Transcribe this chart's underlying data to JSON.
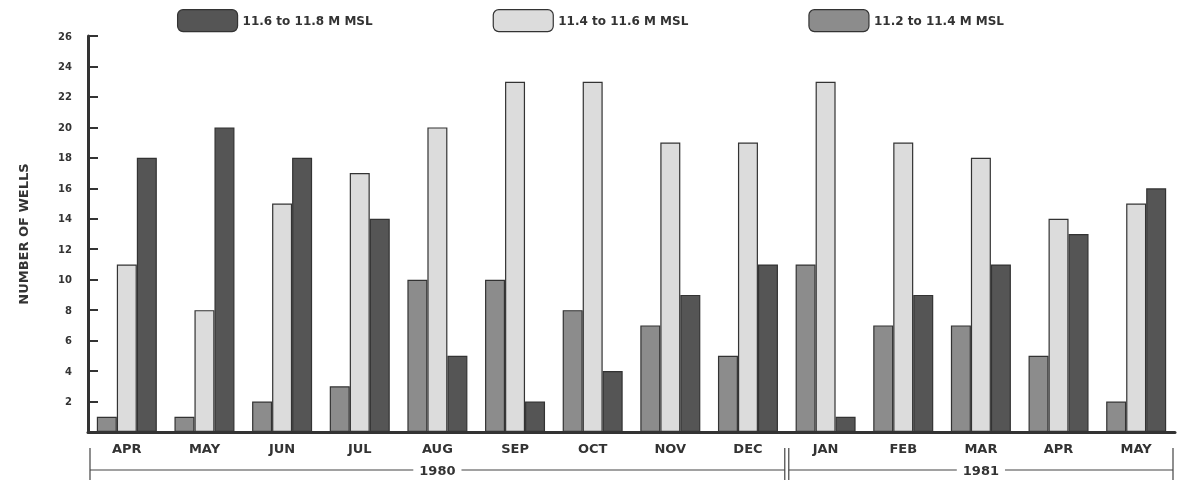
{
  "chart_data": {
    "type": "bar",
    "ylabel": "NUMBER OF WELLS",
    "categories": [
      "APR",
      "MAY",
      "JUN",
      "JUL",
      "AUG",
      "SEP",
      "OCT",
      "NOV",
      "DEC",
      "JAN",
      "FEB",
      "MAR",
      "APR",
      "MAY"
    ],
    "series": [
      {
        "name": "11.2 to 11.4 M MSL",
        "color": "#8c8c8c",
        "values": [
          1,
          1,
          2,
          3,
          10,
          10,
          8,
          7,
          5,
          11,
          7,
          7,
          5,
          2
        ]
      },
      {
        "name": "11.4 to 11.6 M MSL",
        "color": "#dcdcdc",
        "values": [
          11,
          8,
          15,
          17,
          20,
          23,
          23,
          19,
          19,
          23,
          19,
          18,
          14,
          15
        ]
      },
      {
        "name": "11.6 to 11.8 M MSL",
        "color": "#555555",
        "values": [
          18,
          20,
          18,
          14,
          5,
          2,
          4,
          9,
          11,
          1,
          9,
          11,
          13,
          16
        ]
      }
    ],
    "ylim": [
      0,
      26
    ],
    "yticks": [
      2,
      4,
      6,
      8,
      10,
      12,
      14,
      16,
      18,
      20,
      22,
      24,
      26
    ],
    "grid": false,
    "legend": "top",
    "annotations": [
      "1980",
      "1981"
    ]
  }
}
